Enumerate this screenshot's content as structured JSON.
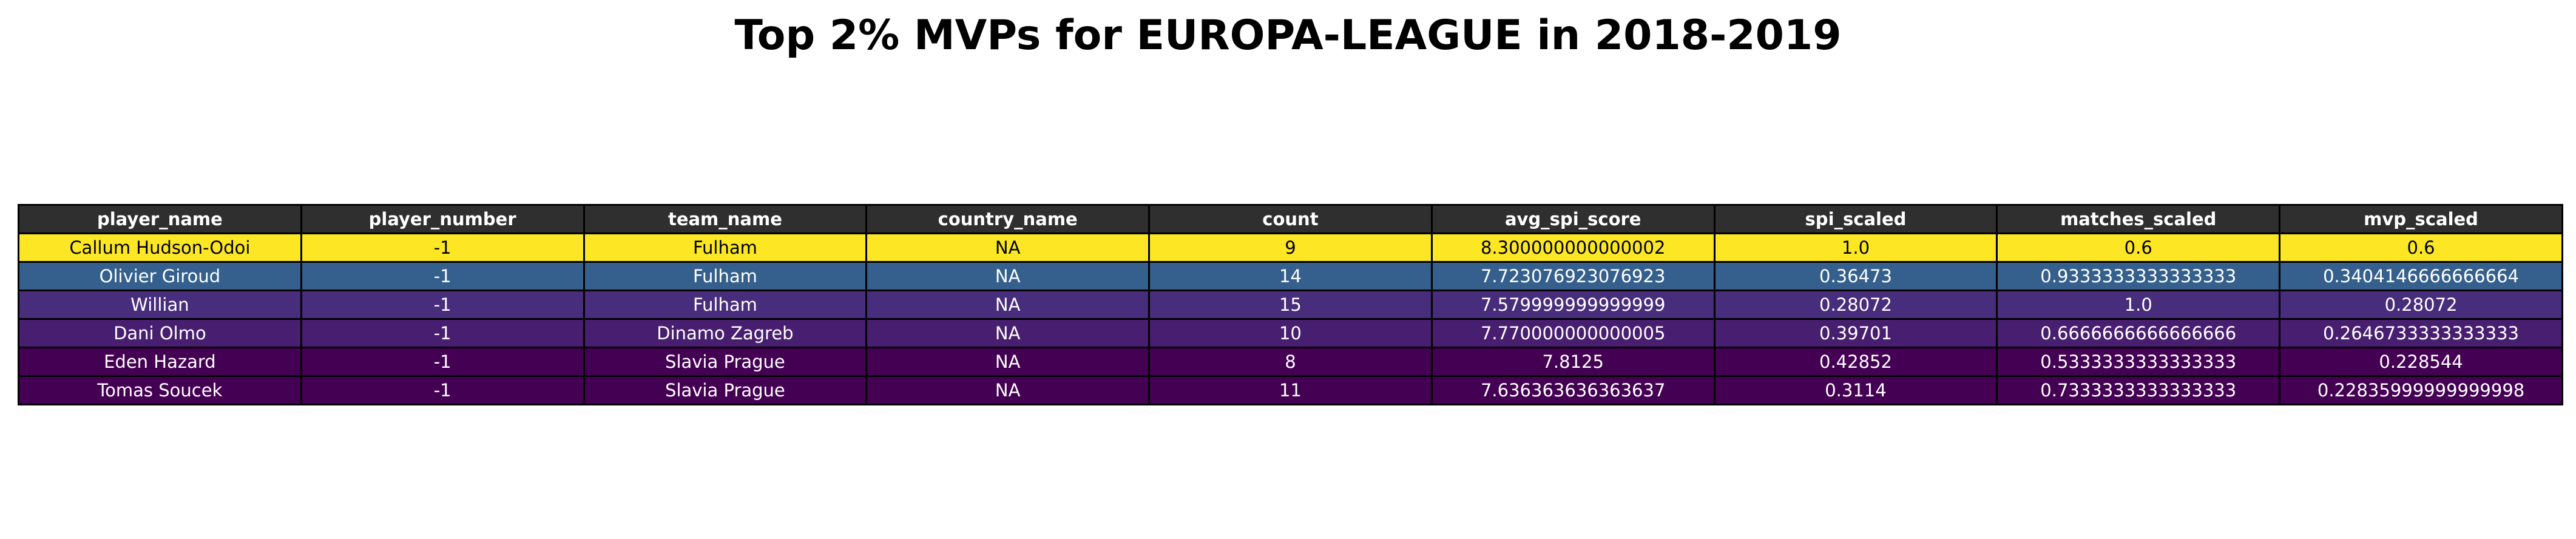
{
  "chart_data": {
    "type": "table",
    "title": "Top 2% MVPs for EUROPA-LEAGUE in 2018-2019",
    "columns": [
      "player_name",
      "player_number",
      "team_name",
      "country_name",
      "count",
      "avg_spi_score",
      "spi_scaled",
      "matches_scaled",
      "mvp_scaled"
    ],
    "rows": [
      {
        "cells": [
          "Callum Hudson-Odoi",
          "-1",
          "Fulham",
          "NA",
          "9",
          "8.300000000000002",
          "1.0",
          "0.6",
          "0.6"
        ],
        "color": "#fde725",
        "text_color": "#000000"
      },
      {
        "cells": [
          "Olivier Giroud",
          "-1",
          "Fulham",
          "NA",
          "14",
          "7.723076923076923",
          "0.36473",
          "0.9333333333333333",
          "0.3404146666666664"
        ],
        "color": "#35608d",
        "text_color": "#ffffff"
      },
      {
        "cells": [
          "Willian",
          "-1",
          "Fulham",
          "NA",
          "15",
          "7.579999999999999",
          "0.28072",
          "1.0",
          "0.28072"
        ],
        "color": "#472d7b",
        "text_color": "#ffffff"
      },
      {
        "cells": [
          "Dani Olmo",
          "-1",
          "Dinamo Zagreb",
          "NA",
          "10",
          "7.770000000000005",
          "0.39701",
          "0.6666666666666666",
          "0.2646733333333333"
        ],
        "color": "#481f70",
        "text_color": "#ffffff"
      },
      {
        "cells": [
          "Eden Hazard",
          "-1",
          "Slavia Prague",
          "NA",
          "8",
          "7.8125",
          "0.42852",
          "0.5333333333333333",
          "0.228544"
        ],
        "color": "#440154",
        "text_color": "#ffffff"
      },
      {
        "cells": [
          "Tomas Soucek",
          "-1",
          "Slavia Prague",
          "NA",
          "11",
          "7.636363636363637",
          "0.3114",
          "0.7333333333333333",
          "0.22835999999999998"
        ],
        "color": "#440154",
        "text_color": "#ffffff"
      }
    ]
  }
}
